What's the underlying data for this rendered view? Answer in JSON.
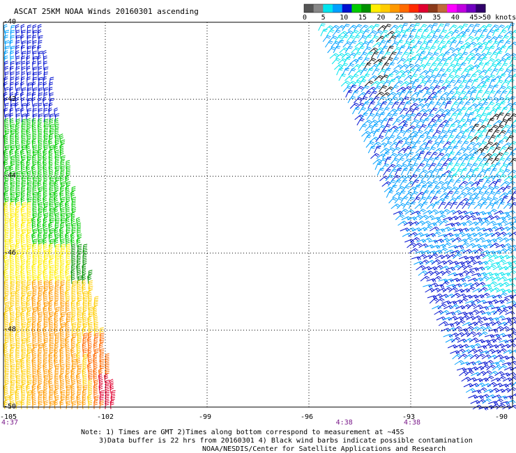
{
  "title": "ASCAT 25KM NOAA Winds 20160301 ascending",
  "legend": {
    "labels": [
      "0",
      "5",
      "10",
      "15",
      "20",
      "25",
      "30",
      "35",
      "40",
      "45",
      ">50 knots"
    ],
    "colors": [
      "#555555",
      "#888888",
      "#00e5ee",
      "#00a0ff",
      "#0010d0",
      "#00cc00",
      "#009000",
      "#ffee00",
      "#ffcc00",
      "#ff9900",
      "#ff6a00",
      "#ff2a00",
      "#e00030",
      "#8a3a1a",
      "#c06a3a",
      "#ff00ff",
      "#c000e0",
      "#7000c0",
      "#30006a"
    ]
  },
  "axes": {
    "lat_labels": [
      "-40",
      "-42",
      "-44",
      "-46",
      "-48",
      "-50"
    ],
    "lon_labels": [
      "-105",
      "-102",
      "-99",
      "-96",
      "-93",
      "-90"
    ],
    "times": [
      {
        "label": "4:37",
        "at_lon": "-105"
      },
      {
        "label": "4:38",
        "at_lon": "-95"
      },
      {
        "label": "4:38",
        "at_lon": "-93"
      }
    ]
  },
  "notes": [
    "Note: 1) Times are GMT 2)Times along bottom correspond to measurement at ~45S",
    "3)Data buffer is 22 hrs from 20160301 4) Black wind barbs indicate possible contamination",
    "NOAA/NESDIS/Center for Satellite Applications and Research"
  ],
  "swaths": {
    "west": {
      "lon_range": [
        -105,
        -102
      ],
      "lat_range": [
        -50,
        -40
      ],
      "dominant_speed_knots": "10-35"
    },
    "east": {
      "lon_range": [
        -96,
        -90
      ],
      "lat_range": [
        -50,
        -40
      ],
      "dominant_speed_knots": "10-20"
    }
  }
}
